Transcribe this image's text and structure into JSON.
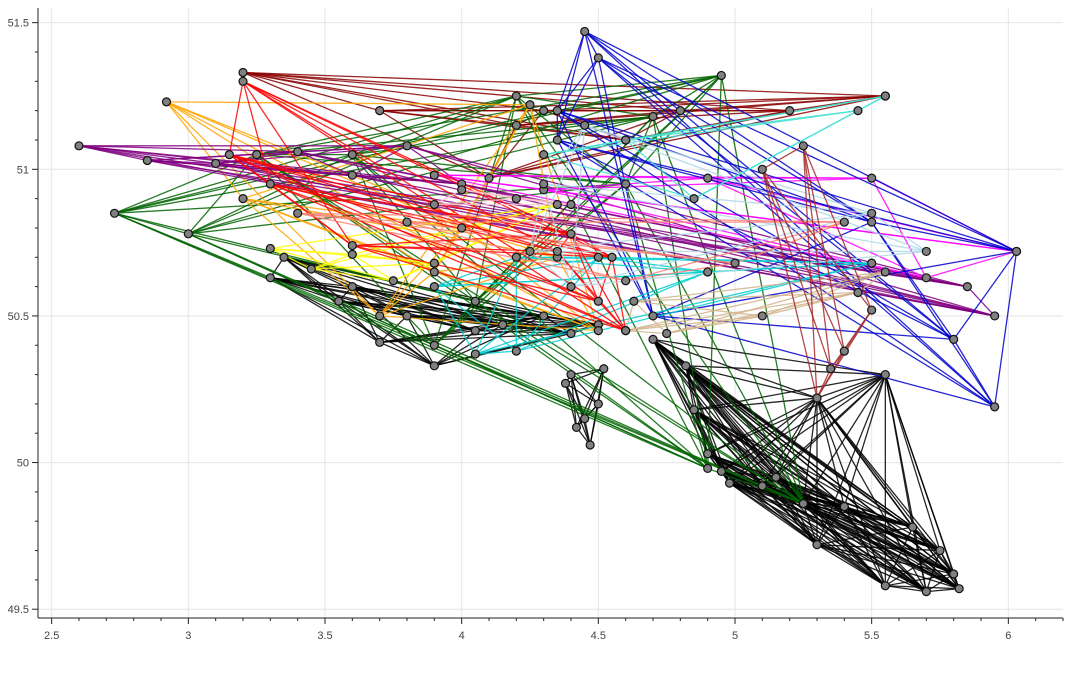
{
  "chart_data": {
    "type": "scatter",
    "title": "",
    "xlabel": "",
    "ylabel": "",
    "xlim": [
      2.45,
      6.2
    ],
    "ylim": [
      49.47,
      51.55
    ],
    "x_ticks": [
      2.5,
      3,
      3.5,
      4,
      4.5,
      5,
      5.5,
      6
    ],
    "x_tick_labels": [
      "2.5",
      "3",
      "3.5",
      "4",
      "4.5",
      "5",
      "5.5",
      "6"
    ],
    "y_ticks": [
      49.5,
      50,
      50.5,
      51,
      51.5
    ],
    "y_tick_labels": [
      "49.5",
      "50",
      "50.5",
      "51",
      "51.5"
    ],
    "grid": true,
    "legend": "none",
    "node_style": {
      "fill": "#808080",
      "stroke": "#111111"
    },
    "groups": [
      {
        "color": "#000000",
        "points": [
          [
            5.3,
            50.22
          ],
          [
            5.55,
            50.3
          ],
          [
            5.8,
            49.62
          ],
          [
            5.75,
            49.7
          ],
          [
            5.55,
            49.58
          ],
          [
            5.3,
            49.72
          ],
          [
            5.25,
            49.86
          ],
          [
            5.1,
            49.92
          ],
          [
            4.95,
            49.97
          ],
          [
            4.98,
            49.93
          ],
          [
            5.15,
            49.95
          ],
          [
            4.9,
            50.03
          ],
          [
            4.85,
            50.18
          ],
          [
            4.82,
            50.33
          ],
          [
            4.7,
            50.42
          ],
          [
            5.4,
            49.85
          ],
          [
            5.65,
            49.78
          ],
          [
            5.82,
            49.57
          ],
          [
            5.7,
            49.56
          ]
        ]
      },
      {
        "color": "#000000",
        "points": [
          [
            4.4,
            50.3
          ],
          [
            4.5,
            50.2
          ],
          [
            4.47,
            50.06
          ],
          [
            4.42,
            50.12
          ],
          [
            4.38,
            50.27
          ],
          [
            4.45,
            50.15
          ],
          [
            4.52,
            50.32
          ]
        ]
      },
      {
        "color": "#000000",
        "points": [
          [
            3.35,
            50.7
          ],
          [
            3.6,
            50.6
          ],
          [
            3.8,
            50.5
          ],
          [
            4.05,
            50.45
          ],
          [
            4.3,
            50.5
          ],
          [
            4.5,
            50.47
          ],
          [
            3.7,
            50.41
          ],
          [
            3.9,
            50.33
          ],
          [
            4.15,
            50.47
          ],
          [
            4.4,
            50.44
          ],
          [
            3.55,
            50.55
          ],
          [
            3.3,
            50.63
          ]
        ]
      },
      {
        "color": "#8b0000",
        "points": [
          [
            3.2,
            51.33
          ],
          [
            3.7,
            51.2
          ],
          [
            4.2,
            51.15
          ],
          [
            4.8,
            51.2
          ],
          [
            5.2,
            51.2
          ],
          [
            5.55,
            51.25
          ],
          [
            4.6,
            51.1
          ],
          [
            4.3,
            51.2
          ],
          [
            4.1,
            50.97
          ]
        ]
      },
      {
        "color": "#006400",
        "points": [
          [
            2.73,
            50.85
          ],
          [
            3.0,
            50.78
          ],
          [
            3.6,
            51.05
          ],
          [
            4.2,
            51.25
          ],
          [
            4.95,
            51.32
          ],
          [
            4.7,
            51.18
          ],
          [
            3.9,
            50.4
          ],
          [
            4.05,
            50.55
          ],
          [
            4.9,
            49.98
          ],
          [
            5.25,
            49.86
          ],
          [
            3.25,
            51.05
          ],
          [
            4.6,
            50.95
          ]
        ]
      },
      {
        "color": "#ffa500",
        "points": [
          [
            2.92,
            51.23
          ],
          [
            3.2,
            50.9
          ],
          [
            3.9,
            50.65
          ],
          [
            4.35,
            50.7
          ],
          [
            4.5,
            50.45
          ],
          [
            4.25,
            51.22
          ],
          [
            3.7,
            50.5
          ],
          [
            4.0,
            50.8
          ]
        ]
      },
      {
        "color": "#800080",
        "points": [
          [
            2.6,
            51.08
          ],
          [
            2.85,
            51.03
          ],
          [
            3.1,
            51.02
          ],
          [
            3.4,
            51.06
          ],
          [
            3.6,
            50.98
          ],
          [
            4.0,
            50.95
          ],
          [
            5.95,
            50.5
          ],
          [
            5.85,
            50.6
          ],
          [
            3.8,
            51.08
          ]
        ]
      },
      {
        "color": "#ff00ff",
        "points": [
          [
            3.9,
            50.98
          ],
          [
            4.3,
            50.93
          ],
          [
            4.9,
            50.97
          ],
          [
            5.5,
            50.97
          ],
          [
            6.03,
            50.72
          ],
          [
            5.7,
            50.63
          ]
        ]
      },
      {
        "color": "#0000cd",
        "points": [
          [
            4.35,
            51.2
          ],
          [
            4.45,
            51.47
          ],
          [
            4.5,
            51.38
          ],
          [
            4.35,
            51.1
          ],
          [
            5.5,
            50.82
          ],
          [
            6.03,
            50.72
          ],
          [
            5.95,
            50.19
          ],
          [
            5.8,
            50.42
          ],
          [
            4.7,
            50.5
          ]
        ]
      },
      {
        "color": "#40e0d0",
        "points": [
          [
            4.6,
            51.1
          ],
          [
            5.45,
            51.2
          ],
          [
            5.55,
            51.25
          ],
          [
            4.85,
            50.9
          ],
          [
            4.3,
            51.05
          ]
        ]
      },
      {
        "color": "#00ced1",
        "points": [
          [
            3.9,
            50.6
          ],
          [
            4.2,
            50.7
          ],
          [
            4.9,
            50.65
          ],
          [
            5.5,
            50.68
          ],
          [
            4.05,
            50.37
          ],
          [
            4.2,
            50.38
          ],
          [
            4.5,
            50.7
          ]
        ]
      },
      {
        "color": "#ffff00",
        "points": [
          [
            3.3,
            50.73
          ],
          [
            3.6,
            50.71
          ],
          [
            3.9,
            50.68
          ],
          [
            3.45,
            50.66
          ],
          [
            3.75,
            50.62
          ],
          [
            4.35,
            50.88
          ]
        ]
      },
      {
        "color": "#ff0000",
        "points": [
          [
            4.4,
            50.78
          ],
          [
            4.5,
            50.55
          ],
          [
            4.6,
            50.45
          ],
          [
            4.35,
            50.72
          ],
          [
            4.55,
            50.7
          ],
          [
            3.2,
            51.3
          ],
          [
            3.15,
            51.05
          ],
          [
            3.3,
            50.95
          ],
          [
            3.6,
            50.74
          ]
        ]
      },
      {
        "color": "#d2b48c",
        "points": [
          [
            4.63,
            50.55
          ],
          [
            4.6,
            50.45
          ],
          [
            5.1,
            50.5
          ],
          [
            5.45,
            50.58
          ],
          [
            5.55,
            50.65
          ],
          [
            4.75,
            50.44
          ]
        ]
      },
      {
        "color": "#add8e6",
        "points": [
          [
            4.45,
            51.15
          ],
          [
            4.3,
            50.95
          ],
          [
            5.5,
            50.85
          ],
          [
            5.7,
            50.72
          ],
          [
            4.4,
            50.6
          ],
          [
            4.25,
            50.72
          ]
        ]
      },
      {
        "color": "#fa8072",
        "points": [
          [
            3.4,
            50.85
          ],
          [
            3.8,
            50.82
          ],
          [
            4.6,
            50.62
          ],
          [
            5.0,
            50.68
          ],
          [
            5.4,
            50.82
          ]
        ]
      },
      {
        "color": "#ffc0cb",
        "points": [
          [
            4.0,
            50.93
          ],
          [
            4.2,
            50.9
          ],
          [
            3.9,
            50.88
          ],
          [
            4.4,
            50.88
          ]
        ]
      },
      {
        "color": "#a52a2a",
        "points": [
          [
            5.3,
            50.22
          ],
          [
            5.4,
            50.38
          ],
          [
            5.5,
            50.52
          ],
          [
            5.35,
            50.32
          ],
          [
            5.25,
            51.08
          ],
          [
            5.1,
            51.0
          ]
        ]
      }
    ]
  }
}
